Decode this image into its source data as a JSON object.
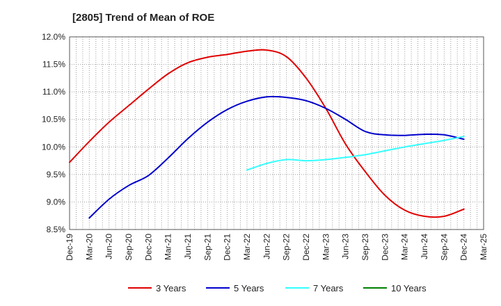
{
  "chart_data": {
    "type": "line",
    "title": "[2805]  Trend of Mean of ROE",
    "xlabel": "",
    "ylabel": "",
    "ylim": [
      8.5,
      12.0
    ],
    "y_ticks": [
      "8.5%",
      "9.0%",
      "9.5%",
      "10.0%",
      "10.5%",
      "11.0%",
      "11.5%",
      "12.0%"
    ],
    "x_ticks": [
      "Dec-19",
      "Mar-20",
      "Jun-20",
      "Sep-20",
      "Dec-20",
      "Mar-21",
      "Jun-21",
      "Sep-21",
      "Dec-21",
      "Mar-22",
      "Jun-22",
      "Sep-22",
      "Dec-22",
      "Mar-23",
      "Jun-23",
      "Sep-23",
      "Dec-23",
      "Mar-24",
      "Jun-24",
      "Sep-24",
      "Dec-24",
      "Mar-25"
    ],
    "grid": true,
    "legend_position": "bottom",
    "series": [
      {
        "name": "3 Years",
        "color": "#e00000",
        "points": [
          [
            "Dec-19",
            9.72
          ],
          [
            "Mar-20",
            10.1
          ],
          [
            "Jun-20",
            10.45
          ],
          [
            "Sep-20",
            10.75
          ],
          [
            "Dec-20",
            11.05
          ],
          [
            "Mar-21",
            11.33
          ],
          [
            "Jun-21",
            11.53
          ],
          [
            "Sep-21",
            11.63
          ],
          [
            "Dec-21",
            11.68
          ],
          [
            "Mar-22",
            11.74
          ],
          [
            "Jun-22",
            11.76
          ],
          [
            "Sep-22",
            11.64
          ],
          [
            "Dec-22",
            11.25
          ],
          [
            "Mar-23",
            10.7
          ],
          [
            "Jun-23",
            10.05
          ],
          [
            "Sep-23",
            9.55
          ],
          [
            "Dec-23",
            9.12
          ],
          [
            "Mar-24",
            8.85
          ],
          [
            "Jun-24",
            8.74
          ],
          [
            "Sep-24",
            8.74
          ],
          [
            "Dec-24",
            8.87
          ]
        ]
      },
      {
        "name": "5 Years",
        "color": "#0000cc",
        "points": [
          [
            "Mar-20",
            8.71
          ],
          [
            "Jun-20",
            9.05
          ],
          [
            "Sep-20",
            9.3
          ],
          [
            "Dec-20",
            9.48
          ],
          [
            "Mar-21",
            9.8
          ],
          [
            "Jun-21",
            10.15
          ],
          [
            "Sep-21",
            10.45
          ],
          [
            "Dec-21",
            10.68
          ],
          [
            "Mar-22",
            10.83
          ],
          [
            "Jun-22",
            10.91
          ],
          [
            "Sep-22",
            10.9
          ],
          [
            "Dec-22",
            10.84
          ],
          [
            "Mar-23",
            10.7
          ],
          [
            "Jun-23",
            10.5
          ],
          [
            "Sep-23",
            10.28
          ],
          [
            "Dec-23",
            10.22
          ],
          [
            "Mar-24",
            10.21
          ],
          [
            "Jun-24",
            10.23
          ],
          [
            "Sep-24",
            10.22
          ],
          [
            "Dec-24",
            10.14
          ]
        ]
      },
      {
        "name": "7 Years",
        "color": "#33ffff",
        "points": [
          [
            "Mar-22",
            9.58
          ],
          [
            "Jun-22",
            9.7
          ],
          [
            "Sep-22",
            9.77
          ],
          [
            "Dec-22",
            9.75
          ],
          [
            "Mar-23",
            9.77
          ],
          [
            "Jun-23",
            9.81
          ],
          [
            "Sep-23",
            9.86
          ],
          [
            "Dec-23",
            9.93
          ],
          [
            "Mar-24",
            10.0
          ],
          [
            "Jun-24",
            10.06
          ],
          [
            "Sep-24",
            10.12
          ],
          [
            "Dec-24",
            10.19
          ]
        ]
      },
      {
        "name": "10 Years",
        "color": "#008000",
        "points": []
      }
    ]
  }
}
